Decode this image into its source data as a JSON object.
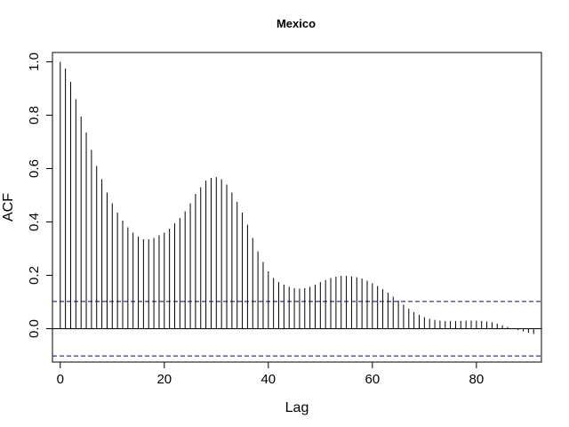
{
  "chart_data": {
    "type": "bar",
    "title": "Mexico",
    "xlabel": "Lag",
    "ylabel": "ACF",
    "xlim": [
      -1.5,
      92.5
    ],
    "ylim": [
      -0.125,
      1.035
    ],
    "x_ticks": [
      0,
      20,
      40,
      60,
      80
    ],
    "y_ticks": [
      0.0,
      0.2,
      0.4,
      0.6,
      0.8,
      1.0
    ],
    "x_tick_labels": [
      "0",
      "20",
      "40",
      "60",
      "80"
    ],
    "y_tick_labels": [
      "0.0",
      "0.2",
      "0.4",
      "0.6",
      "0.8",
      "1.0"
    ],
    "confidence_bound": 0.102,
    "x": [
      0,
      1,
      2,
      3,
      4,
      5,
      6,
      7,
      8,
      9,
      10,
      11,
      12,
      13,
      14,
      15,
      16,
      17,
      18,
      19,
      20,
      21,
      22,
      23,
      24,
      25,
      26,
      27,
      28,
      29,
      30,
      31,
      32,
      33,
      34,
      35,
      36,
      37,
      38,
      39,
      40,
      41,
      42,
      43,
      44,
      45,
      46,
      47,
      48,
      49,
      50,
      51,
      52,
      53,
      54,
      55,
      56,
      57,
      58,
      59,
      60,
      61,
      62,
      63,
      64,
      65,
      66,
      67,
      68,
      69,
      70,
      71,
      72,
      73,
      74,
      75,
      76,
      77,
      78,
      79,
      80,
      81,
      82,
      83,
      84,
      85,
      86,
      87,
      88,
      89,
      90,
      91
    ],
    "values": [
      1.0,
      0.975,
      0.925,
      0.86,
      0.795,
      0.735,
      0.67,
      0.61,
      0.56,
      0.51,
      0.47,
      0.435,
      0.405,
      0.38,
      0.36,
      0.345,
      0.335,
      0.335,
      0.34,
      0.35,
      0.36,
      0.375,
      0.395,
      0.415,
      0.44,
      0.47,
      0.505,
      0.53,
      0.555,
      0.565,
      0.568,
      0.56,
      0.54,
      0.51,
      0.475,
      0.435,
      0.39,
      0.34,
      0.29,
      0.25,
      0.215,
      0.19,
      0.175,
      0.165,
      0.157,
      0.152,
      0.15,
      0.152,
      0.157,
      0.165,
      0.175,
      0.183,
      0.19,
      0.195,
      0.198,
      0.198,
      0.196,
      0.193,
      0.188,
      0.18,
      0.17,
      0.16,
      0.148,
      0.135,
      0.12,
      0.105,
      0.09,
      0.075,
      0.062,
      0.052,
      0.043,
      0.037,
      0.033,
      0.03,
      0.029,
      0.029,
      0.029,
      0.029,
      0.03,
      0.03,
      0.03,
      0.029,
      0.027,
      0.024,
      0.019,
      0.013,
      0.007,
      0.0,
      -0.005,
      -0.01,
      -0.015,
      -0.02
    ],
    "grid": false,
    "colors": {
      "bars": "#000000",
      "zero_line": "#000000",
      "confidence_line": "#00008b",
      "frame": "#000000"
    }
  }
}
